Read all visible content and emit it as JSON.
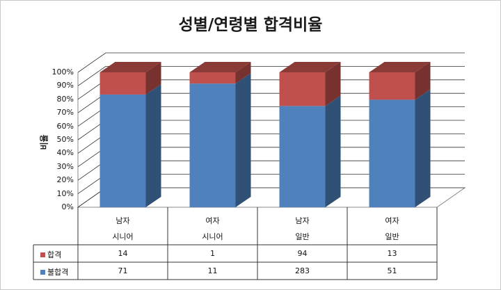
{
  "chart_data": {
    "type": "bar",
    "stacked": "percent",
    "title": "성별/연령별 합격비율",
    "ylabel": "비율",
    "ylim": [
      0,
      100
    ],
    "yticks": [
      "0%",
      "10%",
      "20%",
      "30%",
      "40%",
      "50%",
      "60%",
      "70%",
      "80%",
      "90%",
      "100%"
    ],
    "categories": [
      [
        "남자",
        "시니어"
      ],
      [
        "여자",
        "시니어"
      ],
      [
        "남자",
        "일반"
      ],
      [
        "여자",
        "일반"
      ]
    ],
    "series": [
      {
        "name": "불합격",
        "values": [
          71,
          11,
          283,
          51
        ],
        "color": "#4f81bd"
      },
      {
        "name": "합격",
        "values": [
          14,
          1,
          94,
          13
        ],
        "color": "#c0504d"
      }
    ],
    "data_table": true,
    "grid": true
  }
}
